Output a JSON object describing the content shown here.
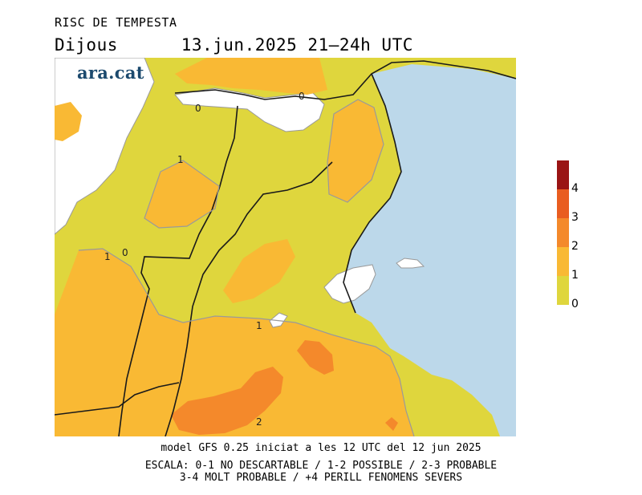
{
  "header": {
    "title": "RISC DE TEMPESTA",
    "day": "Dijous",
    "datetime": "13.jun.2025 21—24h UTC"
  },
  "logo": {
    "text": "ara.cat"
  },
  "map": {
    "contour_labels": [
      "0",
      "0",
      "1",
      "1",
      "0",
      "1",
      "2"
    ],
    "colors": {
      "sea": "#bcd8ea",
      "level_0_1": "#dfd63d",
      "level_1_2": "#f9b934",
      "level_2_3": "#f4892b",
      "level_3_4": "#e95d20",
      "level_4_plus": "#9a1414",
      "excluded": "#ffffff",
      "borders": "#1a1a1a",
      "contours": "#9a9a9a"
    }
  },
  "legend": {
    "ticks": [
      "4",
      "3",
      "2",
      "1",
      "0"
    ],
    "colors": [
      "#9a1414",
      "#e95d20",
      "#f4892b",
      "#f9b934",
      "#dfd63d"
    ]
  },
  "footer": {
    "model": "model GFS 0.25 iniciat a les 12 UTC del 12 jun 2025",
    "scale1": "ESCALA: 0-1 NO DESCARTABLE / 1-2 POSSIBLE / 2-3 PROBABLE",
    "scale2": "3-4 MOLT PROBABLE / +4 PERILL FENOMENS SEVERS"
  }
}
